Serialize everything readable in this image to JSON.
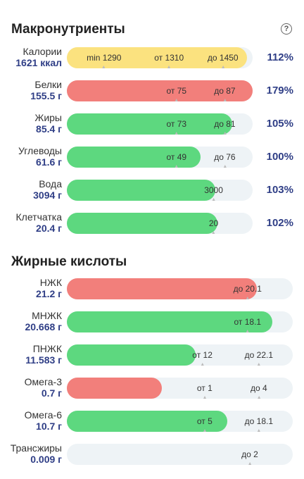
{
  "header": {
    "title": "Макронутриенты",
    "help_icon": "question-circle-icon",
    "help_glyph": "?"
  },
  "macros": [
    {
      "key": "calories",
      "name": "Калории",
      "value": "1621 ккал",
      "percent": "112%",
      "fill": 0.97,
      "color": "#fbe27f",
      "marks": [
        {
          "text": "min 1290",
          "pos": 0.2
        },
        {
          "text": "от 1310",
          "pos": 0.55
        },
        {
          "text": "до 1450",
          "pos": 0.84
        }
      ]
    },
    {
      "key": "protein",
      "name": "Белки",
      "value": "155.5 г",
      "percent": "179%",
      "fill": 1.0,
      "color": "#f27f7b",
      "marks": [
        {
          "text": "от 75",
          "pos": 0.59
        },
        {
          "text": "до 87",
          "pos": 0.85
        }
      ]
    },
    {
      "key": "fat",
      "name": "Жиры",
      "value": "85.4 г",
      "percent": "105%",
      "fill": 0.89,
      "color": "#5dd87f",
      "marks": [
        {
          "text": "от 73",
          "pos": 0.59
        },
        {
          "text": "до 81",
          "pos": 0.85
        }
      ]
    },
    {
      "key": "carbs",
      "name": "Углеводы",
      "value": "61.6 г",
      "percent": "100%",
      "fill": 0.72,
      "color": "#5dd87f",
      "marks": [
        {
          "text": "от 49",
          "pos": 0.59
        },
        {
          "text": "до 76",
          "pos": 0.85
        }
      ]
    },
    {
      "key": "water",
      "name": "Вода",
      "value": "3094 г",
      "percent": "103%",
      "fill": 0.8,
      "color": "#5dd87f",
      "marks": [
        {
          "text": "3000",
          "pos": 0.79
        }
      ]
    },
    {
      "key": "fiber",
      "name": "Клетчатка",
      "value": "20.4 г",
      "percent": "102%",
      "fill": 0.81,
      "color": "#5dd87f",
      "marks": [
        {
          "text": "20",
          "pos": 0.79
        }
      ]
    }
  ],
  "fatty_title": "Жирные кислоты",
  "fatty": [
    {
      "key": "sfa",
      "name": "НЖК",
      "value": "21.2 г",
      "fill": 0.84,
      "color": "#f27f7b",
      "marks": [
        {
          "text": "до 20.1",
          "pos": 0.8
        }
      ]
    },
    {
      "key": "mufa",
      "name": "МНЖК",
      "value": "20.668 г",
      "fill": 0.91,
      "color": "#5dd87f",
      "marks": [
        {
          "text": "от 18.1",
          "pos": 0.8
        }
      ]
    },
    {
      "key": "pufa",
      "name": "ПНЖК",
      "value": "11.583 г",
      "fill": 0.57,
      "color": "#5dd87f",
      "marks": [
        {
          "text": "от 12",
          "pos": 0.6
        },
        {
          "text": "до 22.1",
          "pos": 0.85
        }
      ]
    },
    {
      "key": "omega3",
      "name": "Омега-3",
      "value": "0.7 г",
      "fill": 0.42,
      "color": "#f27f7b",
      "marks": [
        {
          "text": "от 1",
          "pos": 0.61
        },
        {
          "text": "до 4",
          "pos": 0.85
        }
      ]
    },
    {
      "key": "omega6",
      "name": "Омега-6",
      "value": "10.7 г",
      "fill": 0.71,
      "color": "#5dd87f",
      "marks": [
        {
          "text": "от 5",
          "pos": 0.61
        },
        {
          "text": "до 18.1",
          "pos": 0.85
        }
      ]
    },
    {
      "key": "trans",
      "name": "Трансжиры",
      "value": "0.009 г",
      "fill": 0.0,
      "color": "#5dd87f",
      "marks": [
        {
          "text": "до 2",
          "pos": 0.81
        }
      ]
    }
  ]
}
